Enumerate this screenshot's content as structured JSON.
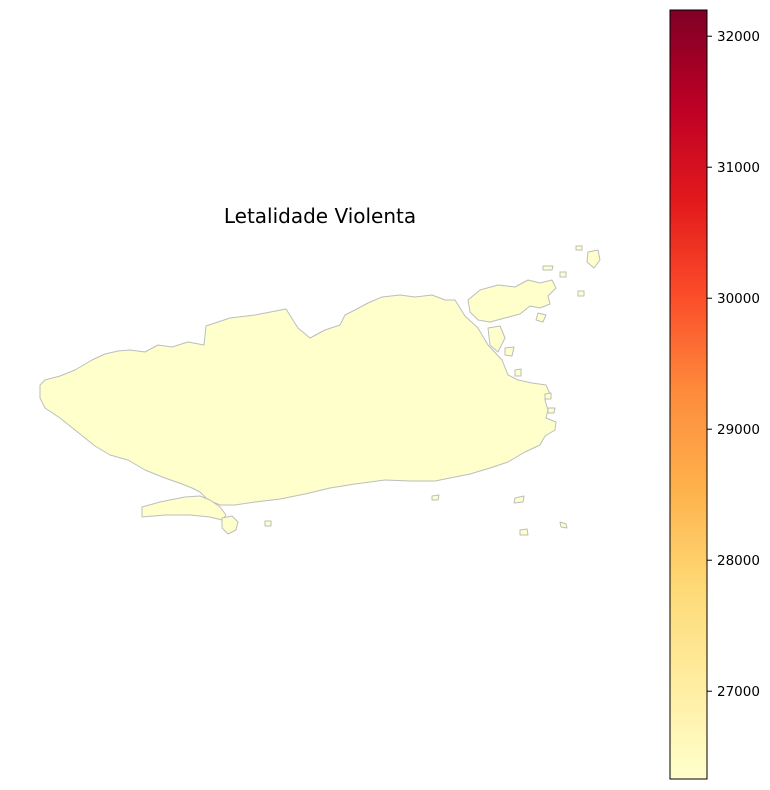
{
  "map": {
    "title": "Letalidade Violenta",
    "region_fill": "#ffffcc",
    "border_color": "#bdbdbd"
  },
  "colorbar": {
    "colormap": "YlOrRd",
    "vmin": 26330,
    "vmax": 32200,
    "stops": [
      "#ffffcc",
      "#ffeda0",
      "#fed976",
      "#feb24c",
      "#fd8d3c",
      "#fc4e2a",
      "#e31a1c",
      "#bd0026",
      "#800026"
    ],
    "ticks": [
      {
        "value": 27000,
        "label": "27000"
      },
      {
        "value": 28000,
        "label": "28000"
      },
      {
        "value": 29000,
        "label": "29000"
      },
      {
        "value": 30000,
        "label": "30000"
      },
      {
        "value": 31000,
        "label": "31000"
      },
      {
        "value": 32000,
        "label": "32000"
      }
    ]
  }
}
